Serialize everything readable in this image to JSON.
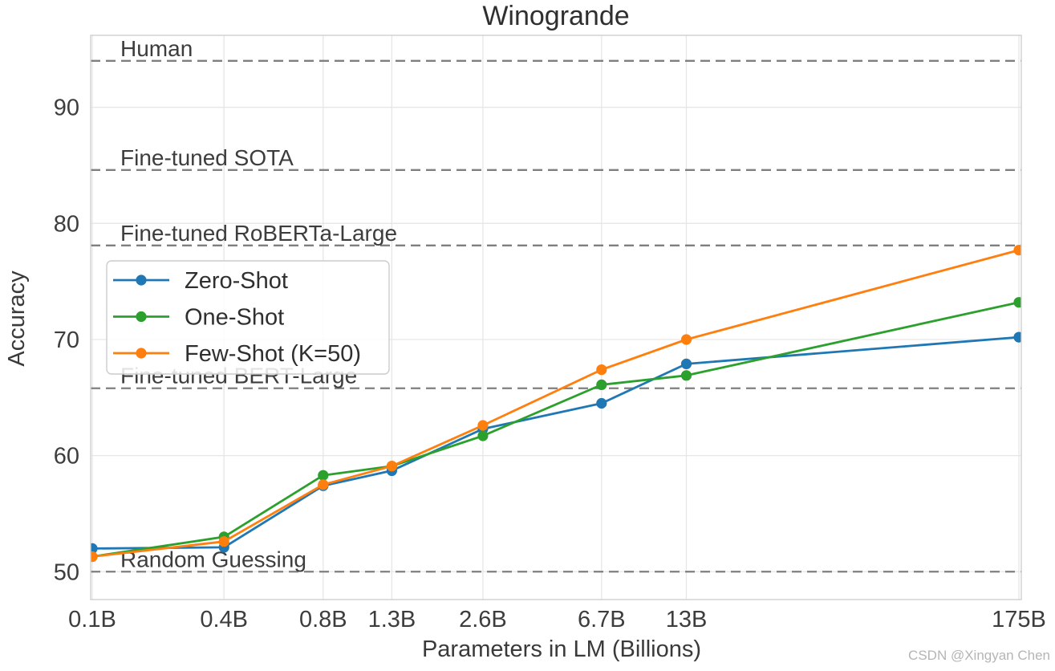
{
  "title": "Winogrande",
  "watermark": "CSDN @Xingyan Chen",
  "colors": {
    "zero_shot": "#1f77b4",
    "one_shot": "#2ca02c",
    "few_shot": "#ff7f0e",
    "reference_line": "#7f7f7f",
    "grid": "#e6e6e6",
    "spine": "#cfcfcf",
    "text": "#3d3d3d",
    "legend_border": "#cccccc",
    "watermark": "#b5b5b5"
  },
  "chart_data": {
    "type": "line",
    "title": "Winogrande",
    "xlabel": "Parameters in LM (Billions)",
    "ylabel": "Accuracy",
    "x_scale": "log",
    "x_tick_labels": [
      "0.1B",
      "0.4B",
      "0.8B",
      "1.3B",
      "2.6B",
      "6.7B",
      "13B",
      "175B"
    ],
    "x_values_billions": [
      0.125,
      0.35,
      0.76,
      1.3,
      2.65,
      6.7,
      13,
      175
    ],
    "y_ticks": [
      50,
      60,
      70,
      80,
      90
    ],
    "ylim": [
      47.6,
      96.2
    ],
    "grid": true,
    "series": [
      {
        "name": "Zero-Shot",
        "color": "#1f77b4",
        "values": [
          52.0,
          52.1,
          57.4,
          58.7,
          62.3,
          64.5,
          67.9,
          70.2
        ]
      },
      {
        "name": "One-Shot",
        "color": "#2ca02c",
        "values": [
          51.3,
          53.0,
          58.3,
          59.1,
          61.7,
          66.1,
          66.9,
          73.2
        ]
      },
      {
        "name": "Few-Shot (K=50)",
        "color": "#ff7f0e",
        "values": [
          51.3,
          52.6,
          57.5,
          59.1,
          62.6,
          67.4,
          70.0,
          77.7
        ]
      }
    ],
    "reference_lines": [
      {
        "label": "Human",
        "value": 94.0
      },
      {
        "label": "Fine-tuned SOTA",
        "value": 84.6
      },
      {
        "label": "Fine-tuned RoBERTa-Large",
        "value": 78.1
      },
      {
        "label": "Fine-tuned BERT-Large",
        "value": 65.8
      },
      {
        "label": "Random Guessing",
        "value": 50.0
      }
    ],
    "legend": {
      "position": "upper-left-inside",
      "entries": [
        "Zero-Shot",
        "One-Shot",
        "Few-Shot (K=50)"
      ]
    }
  }
}
